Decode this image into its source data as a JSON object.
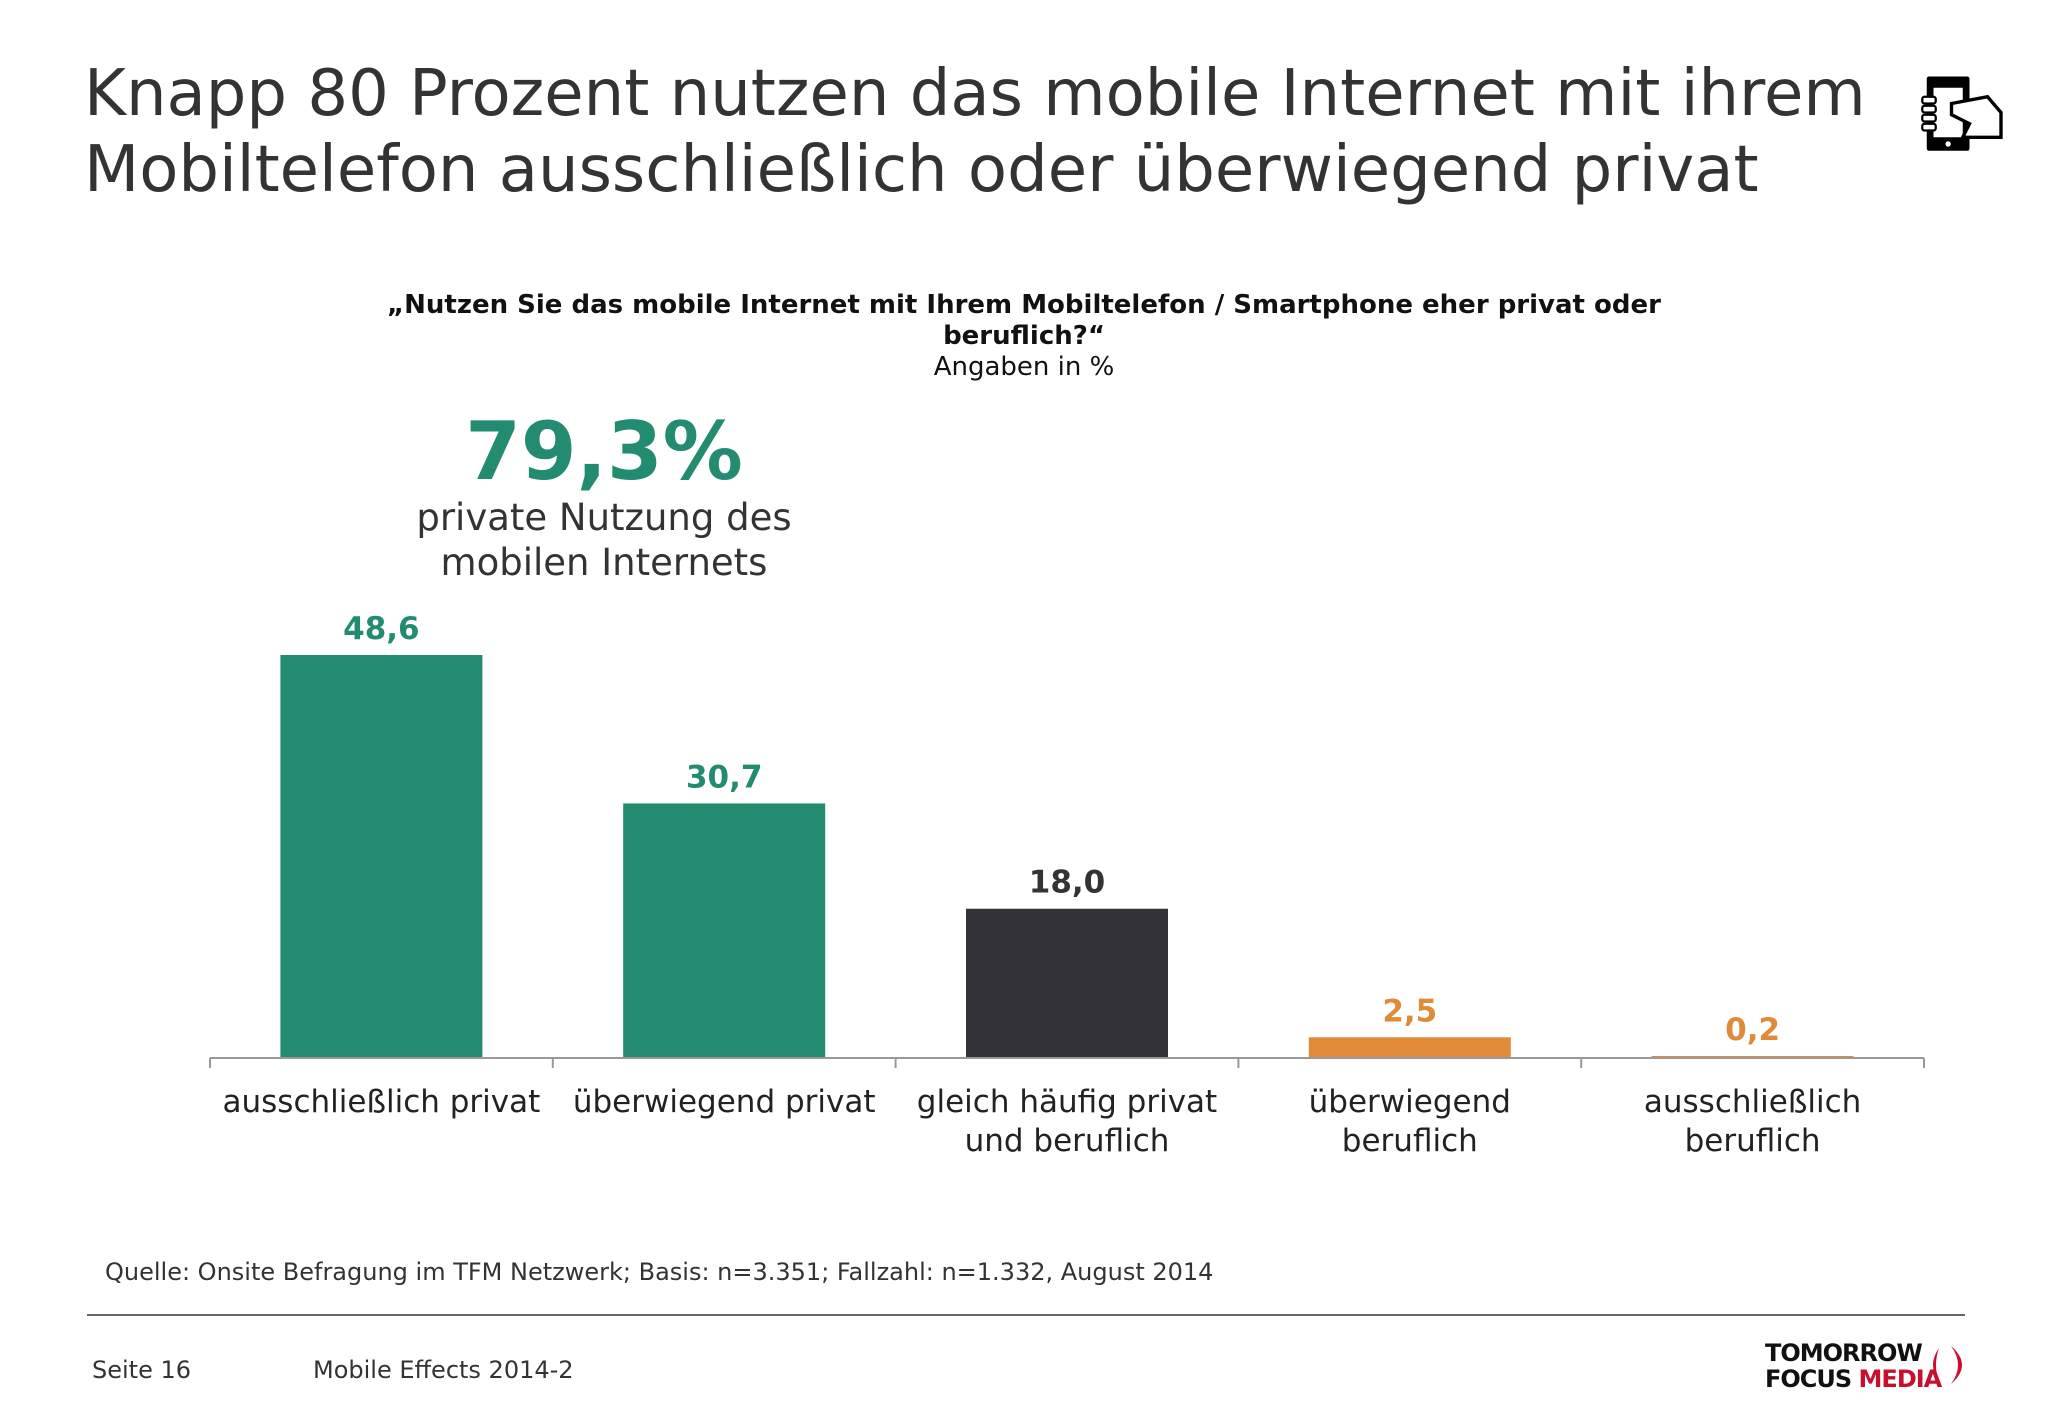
{
  "header": {
    "title_lines": [
      "Knapp 80 Prozent nutzen das mobile Internet mit ihrem",
      "Mobiltelefon ausschließlich oder überwiegend privat"
    ],
    "icon": "hand-holding-smartphone-icon"
  },
  "highlight": {
    "value": "79,3%",
    "text_lines": [
      "private Nutzung des",
      "mobilen Internets"
    ]
  },
  "chart_data": {
    "type": "bar",
    "title": "„Nutzen Sie das mobile Internet mit Ihrem Mobiltelefon / Smartphone eher privat oder beruflich?“",
    "subtitle": "Angaben in %",
    "categories": [
      [
        "ausschließlich privat"
      ],
      [
        "überwiegend privat"
      ],
      [
        "gleich häufig privat",
        "und beruflich"
      ],
      [
        "überwiegend",
        "beruflich"
      ],
      [
        "ausschließlich",
        "beruflich"
      ]
    ],
    "values": [
      48.6,
      30.7,
      18.0,
      2.5,
      0.2
    ],
    "value_labels": [
      "48,6",
      "30,7",
      "18,0",
      "2,5",
      "0,2"
    ],
    "colors": [
      "#238c70",
      "#238c70",
      "#333236",
      "#e08b3a",
      "#e08b3a"
    ],
    "ylim": [
      0,
      55
    ],
    "grid": false
  },
  "footer": {
    "source": "Quelle: Onsite Befragung im TFM Netzwerk; Basis: n=3.351; Fallzahl: n=1.332, August 2014",
    "page": "Seite 16",
    "report": "Mobile Effects 2014-2",
    "logo_line1": "TOMORROW",
    "logo_line2a": "FOCUS",
    "logo_line2b": "MEDIA"
  }
}
